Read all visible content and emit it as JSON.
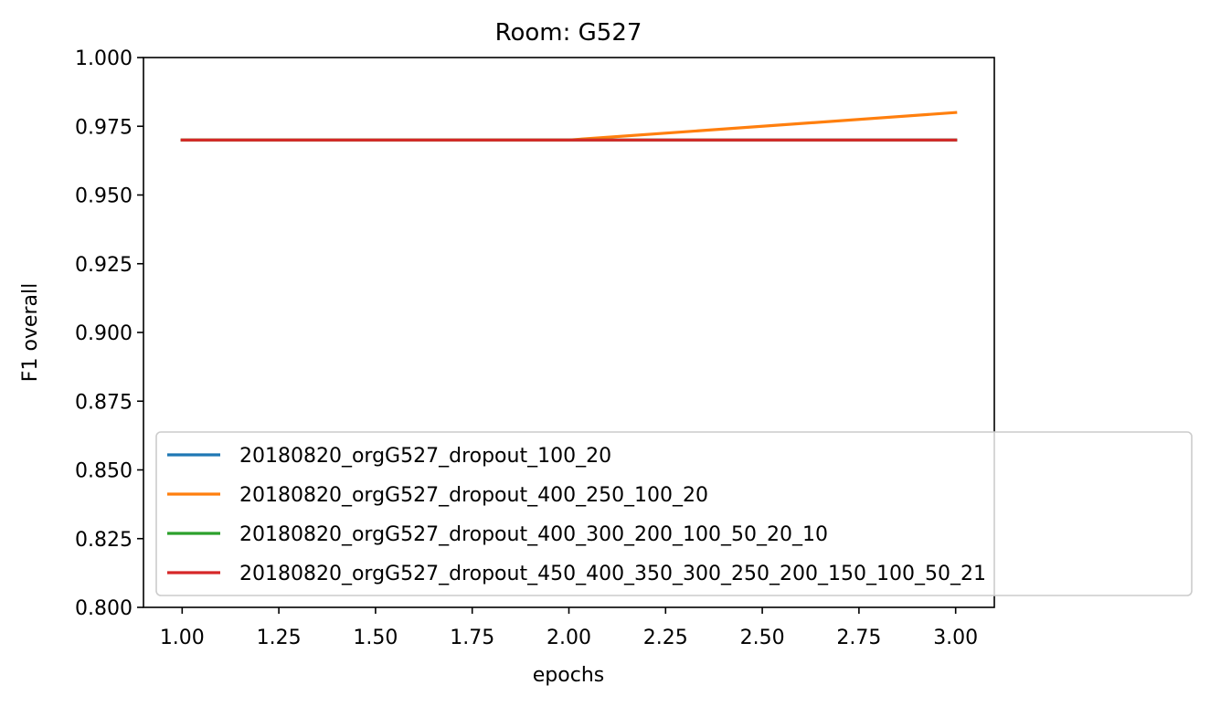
{
  "chart_data": {
    "type": "line",
    "title": "Room: G527",
    "xlabel": "epochs",
    "ylabel": "F1 overall",
    "xlim": [
      0.9,
      3.1
    ],
    "ylim": [
      0.8,
      1.0
    ],
    "xticks": [
      1.0,
      1.25,
      1.5,
      1.75,
      2.0,
      2.25,
      2.5,
      2.75,
      3.0
    ],
    "xtick_labels": [
      "1.00",
      "1.25",
      "1.50",
      "1.75",
      "2.00",
      "2.25",
      "2.50",
      "2.75",
      "3.00"
    ],
    "yticks": [
      0.8,
      0.825,
      0.85,
      0.875,
      0.9,
      0.925,
      0.95,
      0.975,
      1.0
    ],
    "ytick_labels": [
      "0.800",
      "0.825",
      "0.850",
      "0.875",
      "0.900",
      "0.925",
      "0.950",
      "0.975",
      "1.000"
    ],
    "grid": false,
    "legend_position": "lower-right (extends outside plot)",
    "x": [
      1,
      2,
      3
    ],
    "series": [
      {
        "name": "20180820_orgG527_dropout_100_20",
        "values": [
          0.97,
          0.97,
          0.97
        ],
        "color": "#1f77b4"
      },
      {
        "name": "20180820_orgG527_dropout_400_250_100_20",
        "values": [
          0.97,
          0.97,
          0.98
        ],
        "color": "#ff7f0e"
      },
      {
        "name": "20180820_orgG527_dropout_400_300_200_100_50_20_10",
        "values": [
          0.97,
          0.97,
          0.97
        ],
        "color": "#2ca02c"
      },
      {
        "name": "20180820_orgG527_dropout_450_400_350_300_250_200_150_100_50_21",
        "values": [
          0.97,
          0.97,
          0.97
        ],
        "color": "#d62728"
      }
    ]
  }
}
